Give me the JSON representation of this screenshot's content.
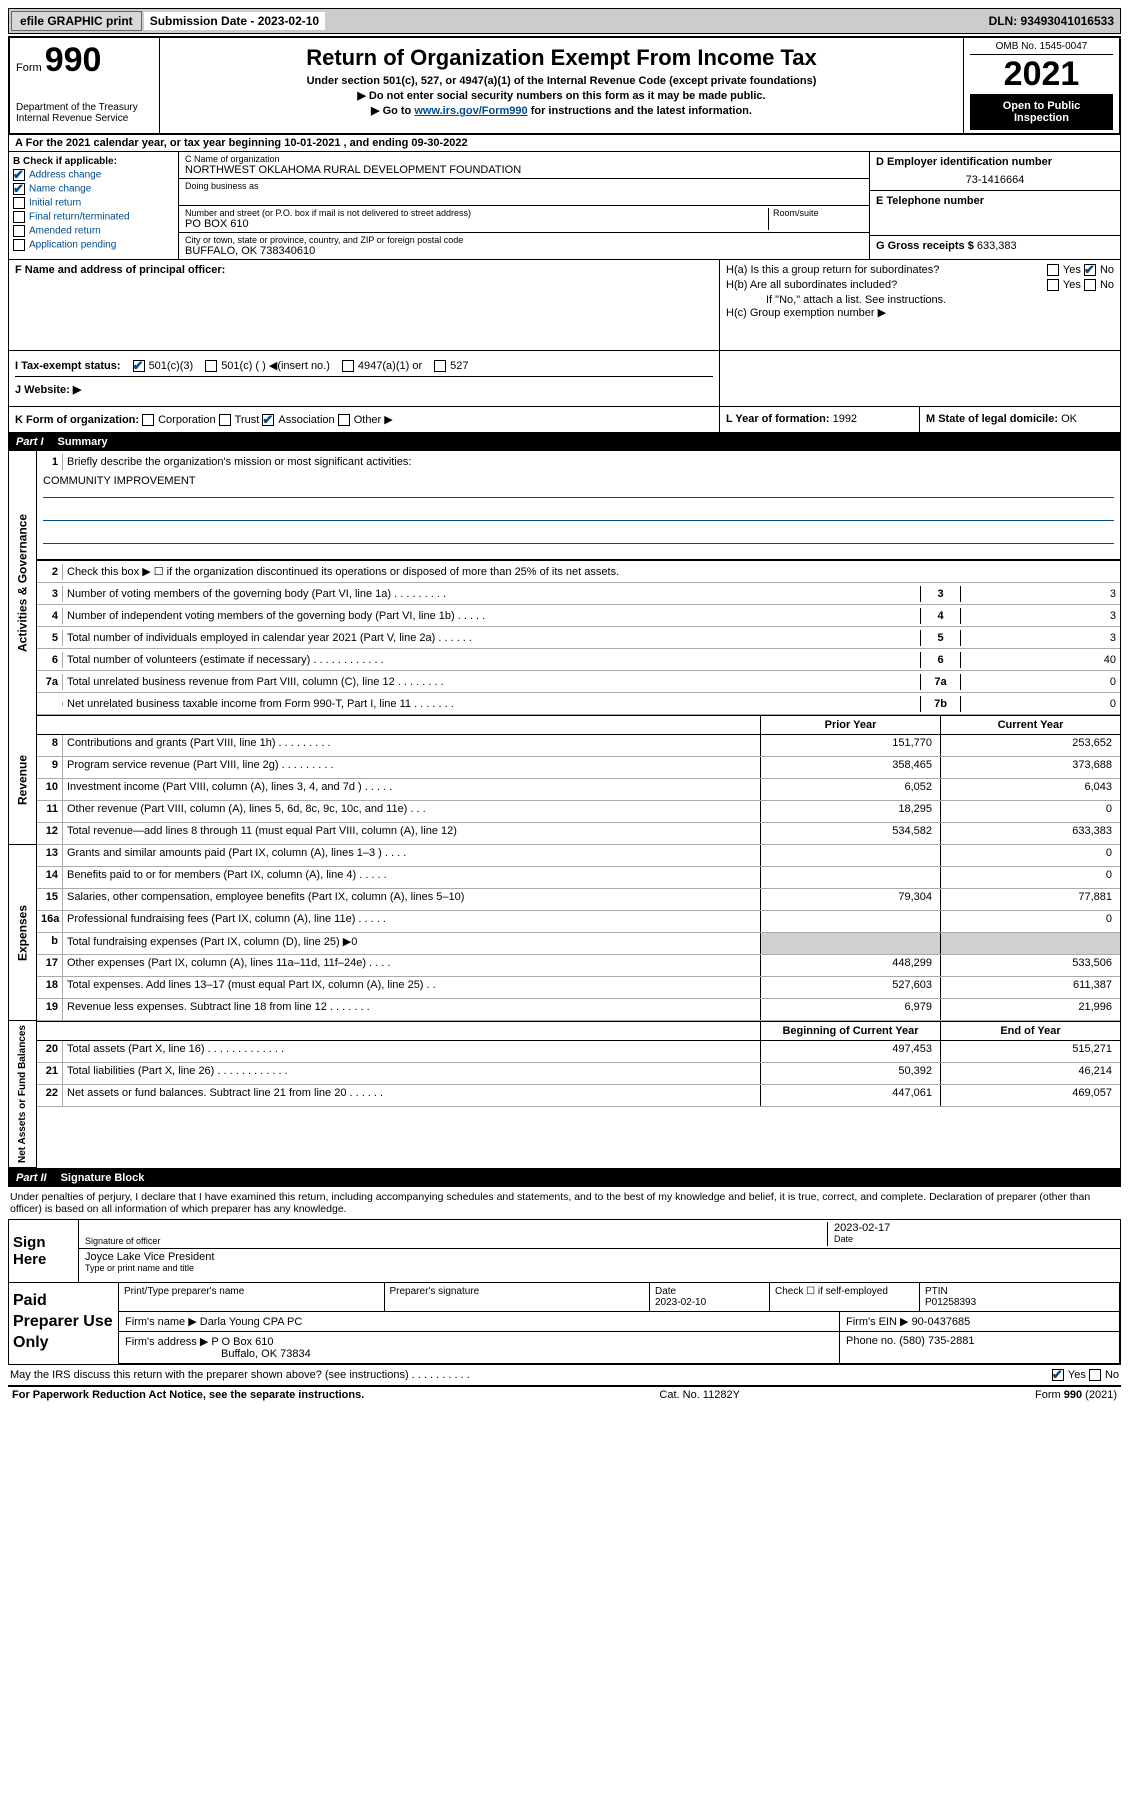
{
  "top": {
    "efile": "efile GRAPHIC print",
    "submission_label": "Submission Date - 2023-02-10",
    "dln": "DLN: 93493041016533"
  },
  "header": {
    "form_prefix": "Form",
    "form_num": "990",
    "dept": "Department of the Treasury",
    "irs": "Internal Revenue Service",
    "title": "Return of Organization Exempt From Income Tax",
    "line1": "Under section 501(c), 527, or 4947(a)(1) of the Internal Revenue Code (except private foundations)",
    "line2": "▶ Do not enter social security numbers on this form as it may be made public.",
    "line3_pre": "▶ Go to ",
    "line3_link": "www.irs.gov/Form990",
    "line3_post": " for instructions and the latest information.",
    "omb": "OMB No. 1545-0047",
    "year": "2021",
    "open": "Open to Public Inspection",
    "period": "For the 2021 calendar year, or tax year beginning 10-01-2021    , and ending 09-30-2022"
  },
  "box_b": {
    "title": "B Check if applicable:",
    "items": [
      {
        "label": "Address change",
        "checked": true
      },
      {
        "label": "Name change",
        "checked": true
      },
      {
        "label": "Initial return",
        "checked": false
      },
      {
        "label": "Final return/terminated",
        "checked": false
      },
      {
        "label": "Amended return",
        "checked": false
      },
      {
        "label": "Application pending",
        "checked": false
      }
    ]
  },
  "box_c": {
    "name_lbl": "C Name of organization",
    "name": "NORTHWEST OKLAHOMA RURAL DEVELOPMENT FOUNDATION",
    "dba_lbl": "Doing business as",
    "street_lbl": "Number and street (or P.O. box if mail is not delivered to street address)",
    "room_lbl": "Room/suite",
    "street": "PO BOX 610",
    "city_lbl": "City or town, state or province, country, and ZIP or foreign postal code",
    "city": "BUFFALO, OK  738340610"
  },
  "box_d": {
    "lbl": "D Employer identification number",
    "val": "73-1416664"
  },
  "box_e": {
    "lbl": "E Telephone number",
    "val": ""
  },
  "box_g": {
    "lbl": "G Gross receipts $",
    "val": "633,383"
  },
  "box_f": {
    "lbl": "F  Name and address of principal officer:",
    "val": ""
  },
  "box_h": {
    "ha": "H(a)  Is this a group return for subordinates?",
    "hb": "H(b)  Are all subordinates included?",
    "note": "If \"No,\" attach a list. See instructions.",
    "hc": "H(c)  Group exemption number ▶",
    "ha_no_checked": true
  },
  "row_i": {
    "lbl": "I     Tax-exempt status:",
    "opts": [
      "501(c)(3)",
      "501(c) (  ) ◀(insert no.)",
      "4947(a)(1) or",
      "527"
    ],
    "checked_idx": 0
  },
  "row_j": {
    "lbl": "J    Website: ▶",
    "val": ""
  },
  "row_k": {
    "lbl": "K Form of organization:",
    "opts": [
      "Corporation",
      "Trust",
      "Association",
      "Other ▶"
    ],
    "checked_idx": 2
  },
  "row_l": {
    "lbl": "L Year of formation:",
    "val": "1992"
  },
  "row_m": {
    "lbl": "M State of legal domicile:",
    "val": "OK"
  },
  "parts": {
    "p1": {
      "num": "Part I",
      "title": "Summary"
    },
    "p2": {
      "num": "Part II",
      "title": "Signature Block"
    }
  },
  "sections": {
    "ag": "Activities & Governance",
    "rev": "Revenue",
    "exp": "Expenses",
    "na": "Net Assets or Fund Balances"
  },
  "mission": {
    "q": "Briefly describe the organization's mission or most significant activities:",
    "a": "COMMUNITY IMPROVEMENT"
  },
  "lines_ag": [
    {
      "n": "2",
      "t": "Check this box ▶ ☐  if the organization discontinued its operations or disposed of more than 25% of its net assets."
    },
    {
      "n": "3",
      "t": "Number of voting members of the governing body (Part VI, line 1a)  .    .    .    .    .    .    .    .    .",
      "box": "3",
      "v": "3"
    },
    {
      "n": "4",
      "t": "Number of independent voting members of the governing body (Part VI, line 1b)   .    .    .    .    .",
      "box": "4",
      "v": "3"
    },
    {
      "n": "5",
      "t": "Total number of individuals employed in calendar year 2021 (Part V, line 2a)   .    .    .    .    .    .",
      "box": "5",
      "v": "3"
    },
    {
      "n": "6",
      "t": "Total number of volunteers (estimate if necessary)   .    .    .    .    .    .    .    .    .    .    .    .",
      "box": "6",
      "v": "40"
    },
    {
      "n": "7a",
      "t": "Total unrelated business revenue from Part VIII, column (C), line 12   .    .    .    .    .    .    .    .",
      "box": "7a",
      "v": "0"
    },
    {
      "n": "",
      "t": "Net unrelated business taxable income from Form 990-T, Part I, line 11   .    .    .    .    .    .    .",
      "box": "7b",
      "v": "0"
    }
  ],
  "two_col": {
    "h1": "Prior Year",
    "h2": "Current Year",
    "h3": "Beginning of Current Year",
    "h4": "End of Year"
  },
  "lines_rev": [
    {
      "n": "8",
      "t": "Contributions and grants (Part VIII, line 1h)   .    .    .    .    .    .    .    .    .",
      "p": "151,770",
      "c": "253,652"
    },
    {
      "n": "9",
      "t": "Program service revenue (Part VIII, line 2g)   .    .    .    .    .    .    .    .    .",
      "p": "358,465",
      "c": "373,688"
    },
    {
      "n": "10",
      "t": "Investment income (Part VIII, column (A), lines 3, 4, and 7d )   .    .    .    .    .",
      "p": "6,052",
      "c": "6,043"
    },
    {
      "n": "11",
      "t": "Other revenue (Part VIII, column (A), lines 5, 6d, 8c, 9c, 10c, and 11e)   .    .    .",
      "p": "18,295",
      "c": "0"
    },
    {
      "n": "12",
      "t": "Total revenue—add lines 8 through 11 (must equal Part VIII, column (A), line 12)",
      "p": "534,582",
      "c": "633,383"
    }
  ],
  "lines_exp": [
    {
      "n": "13",
      "t": "Grants and similar amounts paid (Part IX, column (A), lines 1–3 )   .    .    .    .",
      "p": "",
      "c": "0"
    },
    {
      "n": "14",
      "t": "Benefits paid to or for members (Part IX, column (A), line 4)   .    .    .    .    .",
      "p": "",
      "c": "0"
    },
    {
      "n": "15",
      "t": "Salaries, other compensation, employee benefits (Part IX, column (A), lines 5–10)",
      "p": "79,304",
      "c": "77,881"
    },
    {
      "n": "16a",
      "t": "Professional fundraising fees (Part IX, column (A), line 11e)   .    .    .    .    .",
      "p": "",
      "c": "0"
    },
    {
      "n": "b",
      "t": "Total fundraising expenses (Part IX, column (D), line 25) ▶0",
      "p": "SHADE",
      "c": "SHADE"
    },
    {
      "n": "17",
      "t": "Other expenses (Part IX, column (A), lines 11a–11d, 11f–24e)   .    .    .    .",
      "p": "448,299",
      "c": "533,506"
    },
    {
      "n": "18",
      "t": "Total expenses. Add lines 13–17 (must equal Part IX, column (A), line 25)   .    .",
      "p": "527,603",
      "c": "611,387"
    },
    {
      "n": "19",
      "t": "Revenue less expenses. Subtract line 18 from line 12   .    .    .    .    .    .    .",
      "p": "6,979",
      "c": "21,996"
    }
  ],
  "lines_na": [
    {
      "n": "20",
      "t": "Total assets (Part X, line 16)   .    .    .    .    .    .    .    .    .    .    .    .    .",
      "p": "497,453",
      "c": "515,271"
    },
    {
      "n": "21",
      "t": "Total liabilities (Part X, line 26)   .    .    .    .    .    .    .    .    .    .    .    .",
      "p": "50,392",
      "c": "46,214"
    },
    {
      "n": "22",
      "t": "Net assets or fund balances. Subtract line 21 from line 20   .    .    .    .    .    .",
      "p": "447,061",
      "c": "469,057"
    }
  ],
  "sig": {
    "intro": "Under penalties of perjury, I declare that I have examined this return, including accompanying schedules and statements, and to the best of my knowledge and belief, it is true, correct, and complete. Declaration of preparer (other than officer) is based on all information of which preparer has any knowledge.",
    "sign_here": "Sign Here",
    "sig_officer": "Signature of officer",
    "date": "2023-02-17",
    "date_lbl": "Date",
    "name_title": "Joyce Lake  Vice President",
    "type_lbl": "Type or print name and title"
  },
  "prep": {
    "lbl": "Paid Preparer Use Only",
    "h": [
      "Print/Type preparer's name",
      "Preparer's signature",
      "Date",
      "Check ☐ if self-employed",
      "PTIN"
    ],
    "date": "2023-02-10",
    "ptin": "P01258393",
    "firm_name_lbl": "Firm's name     ▶",
    "firm_name": "Darla Young CPA PC",
    "firm_ein_lbl": "Firm's EIN ▶",
    "firm_ein": "90-0437685",
    "firm_addr_lbl": "Firm's address ▶",
    "firm_addr1": "P O Box 610",
    "firm_addr2": "Buffalo, OK  73834",
    "phone_lbl": "Phone no.",
    "phone": "(580) 735-2881"
  },
  "footer": {
    "q": "May the IRS discuss this return with the preparer shown above? (see instructions)   .    .    .    .    .    .    .    .    .    .",
    "yes_checked": true,
    "pra": "For Paperwork Reduction Act Notice, see the separate instructions.",
    "cat": "Cat. No. 11282Y",
    "form": "Form 990 (2021)"
  }
}
